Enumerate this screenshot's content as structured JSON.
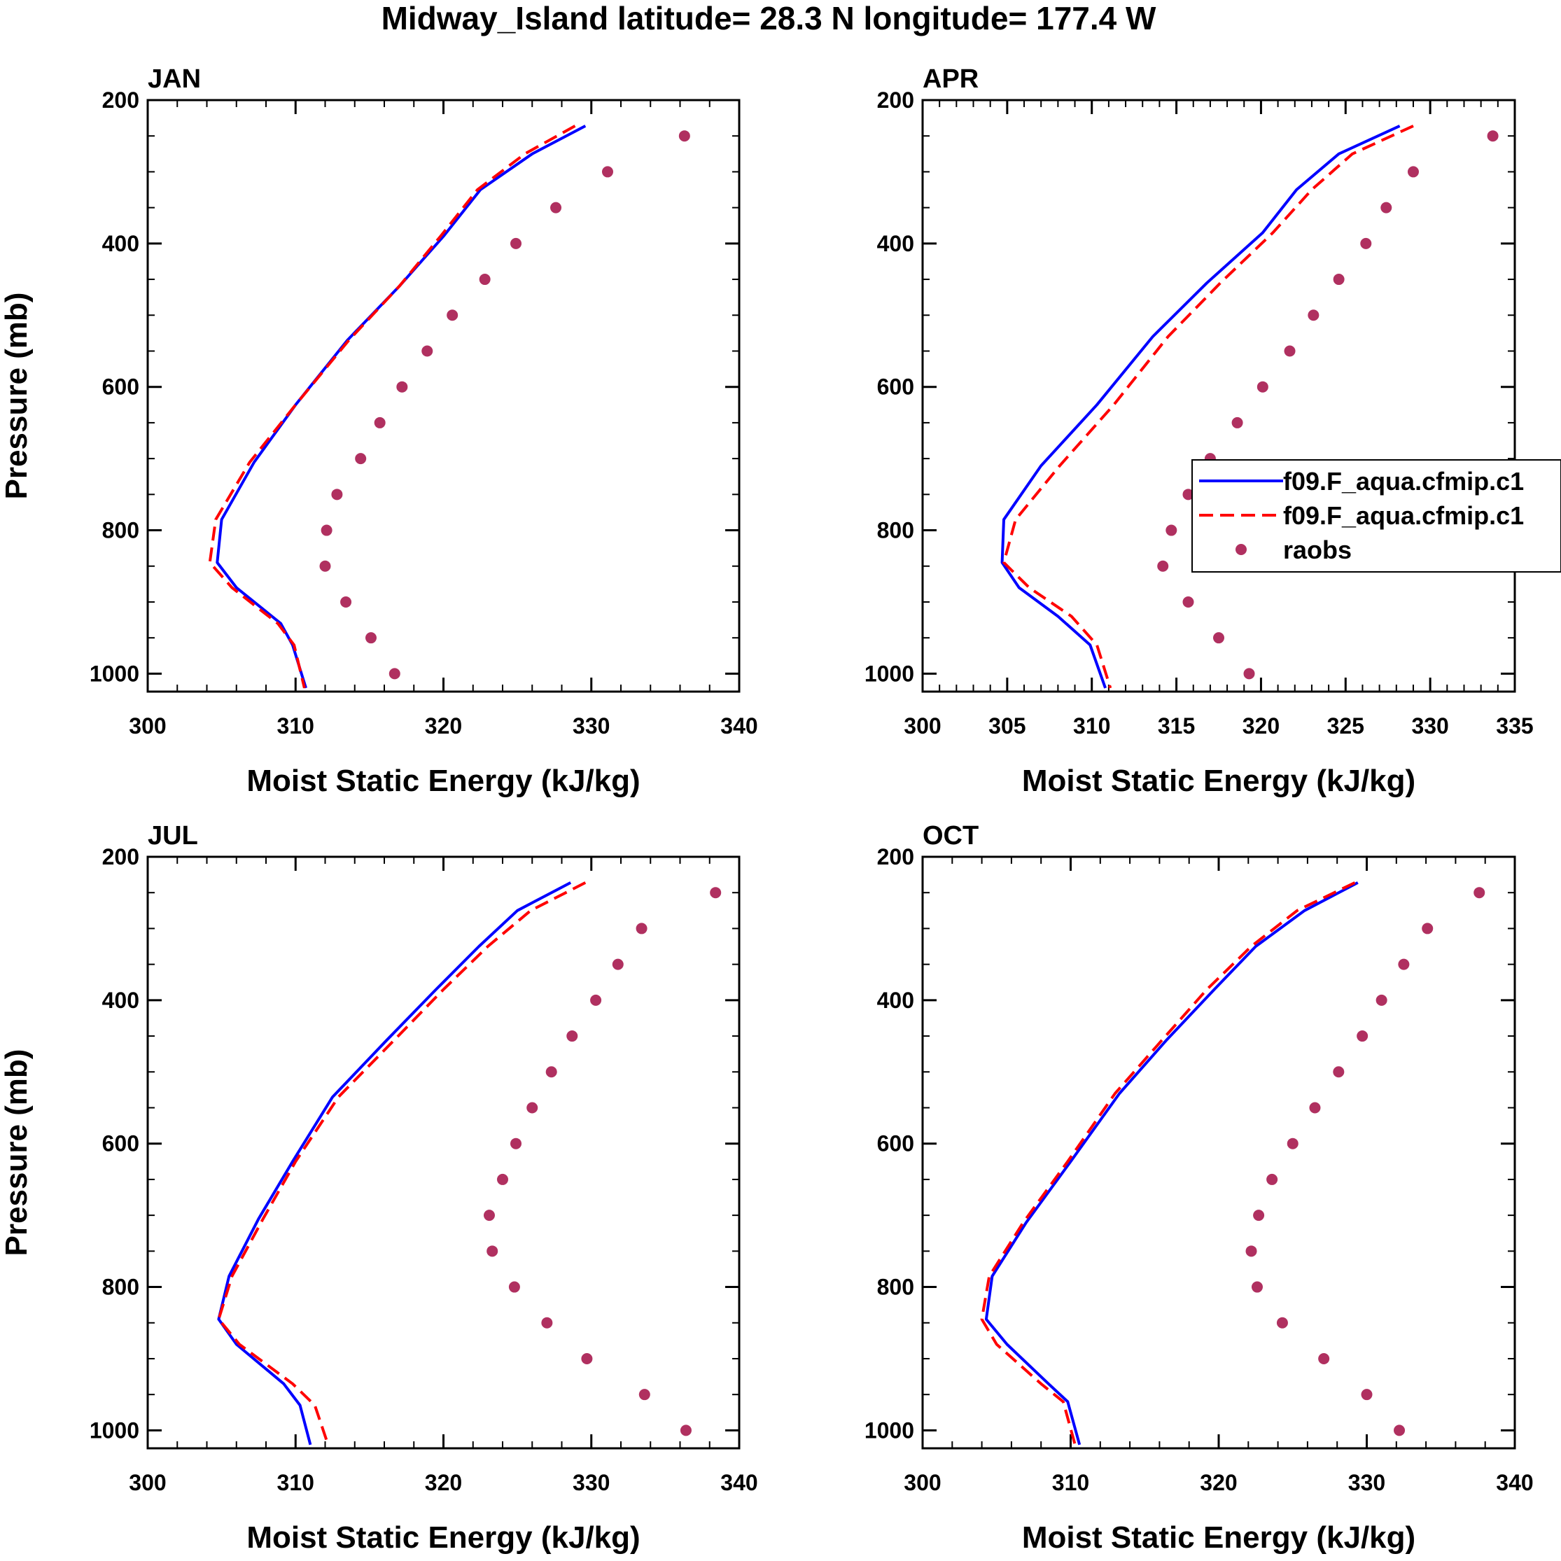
{
  "figure": {
    "title": "Midway_Island  latitude= 28.3 N longitude= 177.4 W"
  },
  "colors": {
    "model1": "#0000ff",
    "model2": "#ff0000",
    "raobs": "#b03060",
    "axis": "#000000"
  },
  "legend": {
    "panel": "APR",
    "entries": [
      {
        "label": "f09.F_aqua.cfmip.c1",
        "style": "solid-line",
        "color": "#0000ff"
      },
      {
        "label": "f09.F_aqua.cfmip.c1",
        "style": "dashed-line",
        "color": "#ff0000"
      },
      {
        "label": "raobs",
        "style": "marker",
        "color": "#b03060"
      }
    ]
  },
  "chart_data": [
    {
      "type": "line",
      "title": "JAN",
      "xlabel": "Moist Static Energy (kJ/kg)",
      "ylabel": "Pressure (mb)",
      "xlim": [
        300,
        340
      ],
      "xticks": [
        300,
        310,
        320,
        330,
        340
      ],
      "ylim": [
        200,
        1025
      ],
      "yticks": [
        200,
        400,
        600,
        800,
        1000
      ],
      "series": [
        {
          "name": "f09.F_aqua.cfmip.c1 (solid)",
          "style": "solid",
          "x": [
            329.6,
            326.0,
            322.5,
            320.0,
            317.0,
            313.5,
            310.0,
            307.2,
            305.0,
            304.7,
            306.0,
            309.0,
            309.8,
            310.7
          ],
          "y": [
            236,
            275,
            325,
            390,
            460,
            535,
            625,
            705,
            785,
            845,
            880,
            930,
            960,
            1020
          ]
        },
        {
          "name": "f09.F_aqua.cfmip.c1 (dashed)",
          "style": "dashed",
          "x": [
            328.9,
            325.5,
            322.3,
            319.8,
            317.0,
            313.6,
            310.0,
            306.9,
            304.6,
            304.2,
            305.7,
            308.8,
            309.9,
            310.6
          ],
          "y": [
            236,
            275,
            325,
            390,
            460,
            535,
            625,
            705,
            785,
            845,
            880,
            930,
            960,
            1020
          ]
        },
        {
          "name": "raobs",
          "style": "marker",
          "x": [
            336.3,
            331.1,
            327.6,
            324.9,
            322.8,
            320.6,
            318.9,
            317.2,
            315.7,
            314.4,
            312.8,
            312.1,
            312.0,
            313.4,
            315.1,
            316.7
          ],
          "y": [
            250,
            300,
            350,
            400,
            450,
            500,
            550,
            600,
            650,
            700,
            750,
            800,
            850,
            900,
            950,
            1000
          ]
        }
      ]
    },
    {
      "type": "line",
      "title": "APR",
      "xlabel": "Moist Static Energy (kJ/kg)",
      "ylabel": "",
      "xlim": [
        300,
        335
      ],
      "xticks": [
        300,
        305,
        310,
        315,
        320,
        325,
        330,
        335
      ],
      "ylim": [
        200,
        1025
      ],
      "yticks": [
        200,
        400,
        600,
        800,
        1000
      ],
      "series": [
        {
          "name": "f09.F_aqua.cfmip.c1 (solid)",
          "style": "solid",
          "x": [
            328.2,
            324.6,
            322.1,
            320.1,
            316.8,
            313.6,
            310.3,
            307.0,
            304.8,
            304.7,
            305.7,
            308.0,
            309.9,
            310.8
          ],
          "y": [
            236,
            275,
            325,
            385,
            455,
            530,
            625,
            710,
            785,
            845,
            880,
            920,
            960,
            1020
          ]
        },
        {
          "name": "f09.F_aqua.cfmip.c1 (dashed)",
          "style": "dashed",
          "x": [
            329.0,
            325.4,
            323.0,
            320.7,
            317.6,
            314.5,
            311.3,
            308.1,
            305.5,
            304.8,
            306.3,
            308.8,
            310.3,
            311.1
          ],
          "y": [
            236,
            275,
            325,
            385,
            455,
            530,
            625,
            710,
            785,
            845,
            880,
            920,
            960,
            1020
          ]
        },
        {
          "name": "raobs",
          "style": "marker",
          "x": [
            333.7,
            329.0,
            327.4,
            326.2,
            324.6,
            323.1,
            321.7,
            320.1,
            318.6,
            317.0,
            315.7,
            314.7,
            314.2,
            315.7,
            317.5,
            319.3
          ],
          "y": [
            250,
            300,
            350,
            400,
            450,
            500,
            550,
            600,
            650,
            700,
            750,
            800,
            850,
            900,
            950,
            1000
          ]
        }
      ]
    },
    {
      "type": "line",
      "title": "JUL",
      "xlabel": "Moist Static Energy (kJ/kg)",
      "ylabel": "Pressure (mb)",
      "xlim": [
        300,
        340
      ],
      "xticks": [
        300,
        310,
        320,
        330,
        340
      ],
      "ylim": [
        200,
        1025
      ],
      "yticks": [
        200,
        400,
        600,
        800,
        1000
      ],
      "series": [
        {
          "name": "f09.F_aqua.cfmip.c1 (solid)",
          "style": "solid",
          "x": [
            328.6,
            325.0,
            322.4,
            319.5,
            316.2,
            312.5,
            309.8,
            307.5,
            305.5,
            304.8,
            306.0,
            309.2,
            310.3,
            311.0
          ],
          "y": [
            236,
            275,
            325,
            385,
            455,
            535,
            625,
            705,
            785,
            845,
            880,
            935,
            965,
            1020
          ]
        },
        {
          "name": "f09.F_aqua.cfmip.c1 (dashed)",
          "style": "dashed",
          "x": [
            329.6,
            325.9,
            323.0,
            320.0,
            316.7,
            312.9,
            310.0,
            307.8,
            305.7,
            304.8,
            306.2,
            309.8,
            311.3,
            312.2
          ],
          "y": [
            236,
            275,
            325,
            385,
            455,
            535,
            625,
            705,
            785,
            845,
            880,
            935,
            965,
            1020
          ]
        },
        {
          "name": "raobs",
          "style": "marker",
          "x": [
            338.4,
            333.4,
            331.8,
            330.3,
            328.7,
            327.3,
            326.0,
            324.9,
            324.0,
            323.1,
            323.3,
            324.8,
            327.0,
            329.7,
            333.6,
            336.4
          ],
          "y": [
            250,
            300,
            350,
            400,
            450,
            500,
            550,
            600,
            650,
            700,
            750,
            800,
            850,
            900,
            950,
            1000
          ]
        }
      ]
    },
    {
      "type": "line",
      "title": "OCT",
      "xlabel": "Moist Static Energy (kJ/kg)",
      "ylabel": "",
      "xlim": [
        300,
        340
      ],
      "xticks": [
        300,
        310,
        320,
        330,
        340
      ],
      "ylim": [
        200,
        1025
      ],
      "yticks": [
        200,
        400,
        600,
        800,
        1000
      ],
      "series": [
        {
          "name": "f09.F_aqua.cfmip.c1 (solid)",
          "style": "solid",
          "x": [
            329.4,
            325.8,
            322.5,
            319.7,
            316.5,
            313.3,
            310.0,
            307.0,
            304.7,
            304.3,
            305.7,
            308.5,
            309.8,
            310.6
          ],
          "y": [
            236,
            275,
            325,
            385,
            455,
            530,
            625,
            710,
            785,
            845,
            880,
            935,
            960,
            1020
          ]
        },
        {
          "name": "f09.F_aqua.cfmip.c1 (dashed)",
          "style": "dashed",
          "x": [
            329.2,
            325.3,
            322.2,
            319.2,
            316.2,
            313.0,
            309.8,
            306.8,
            304.5,
            304.0,
            305.0,
            308.0,
            309.5,
            310.3
          ],
          "y": [
            236,
            275,
            325,
            385,
            455,
            530,
            625,
            710,
            785,
            845,
            880,
            935,
            960,
            1020
          ]
        },
        {
          "name": "raobs",
          "style": "marker",
          "x": [
            337.6,
            334.1,
            332.5,
            331.0,
            329.7,
            328.1,
            326.5,
            325.0,
            323.6,
            322.7,
            322.2,
            322.6,
            324.3,
            327.1,
            330.0,
            332.2
          ],
          "y": [
            250,
            300,
            350,
            400,
            450,
            500,
            550,
            600,
            650,
            700,
            750,
            800,
            850,
            900,
            950,
            1000
          ]
        }
      ]
    }
  ]
}
